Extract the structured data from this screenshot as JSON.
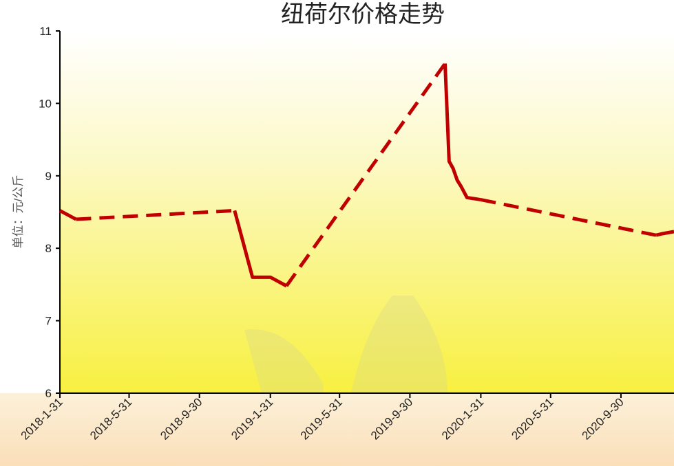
{
  "chart_data": {
    "type": "line",
    "title": "纽荷尔价格走势",
    "y_label": "单位：元/公斤",
    "x": [
      "2018-1-31",
      "2018-2-28",
      "2018-11-30",
      "2018-12-31",
      "2019-1-31",
      "2019-2-28",
      "2019-11-30",
      "2019-12-7",
      "2019-12-14",
      "2019-12-21",
      "2019-12-28",
      "2020-1-7",
      "2020-1-31",
      "2020-11-30",
      "2020-12-10",
      "2020-12-31"
    ],
    "series": [
      {
        "name": "纽荷尔",
        "color": "#c00000",
        "values": [
          8.52,
          8.4,
          8.52,
          7.6,
          7.6,
          7.48,
          10.55,
          9.2,
          9.1,
          8.94,
          8.85,
          8.7,
          8.67,
          8.18,
          8.2,
          8.23
        ]
      }
    ],
    "xlim": [
      "2018-1-31",
      "2020-12-31"
    ],
    "xticks": [
      "2018-1-31",
      "2018-5-31",
      "2018-9-30",
      "2019-1-31",
      "2019-5-31",
      "2019-9-30",
      "2020-1-31",
      "2020-5-31",
      "2020-9-30"
    ],
    "ylim": [
      6,
      11
    ],
    "yticks": [
      6,
      7,
      8,
      9,
      10,
      11
    ]
  }
}
